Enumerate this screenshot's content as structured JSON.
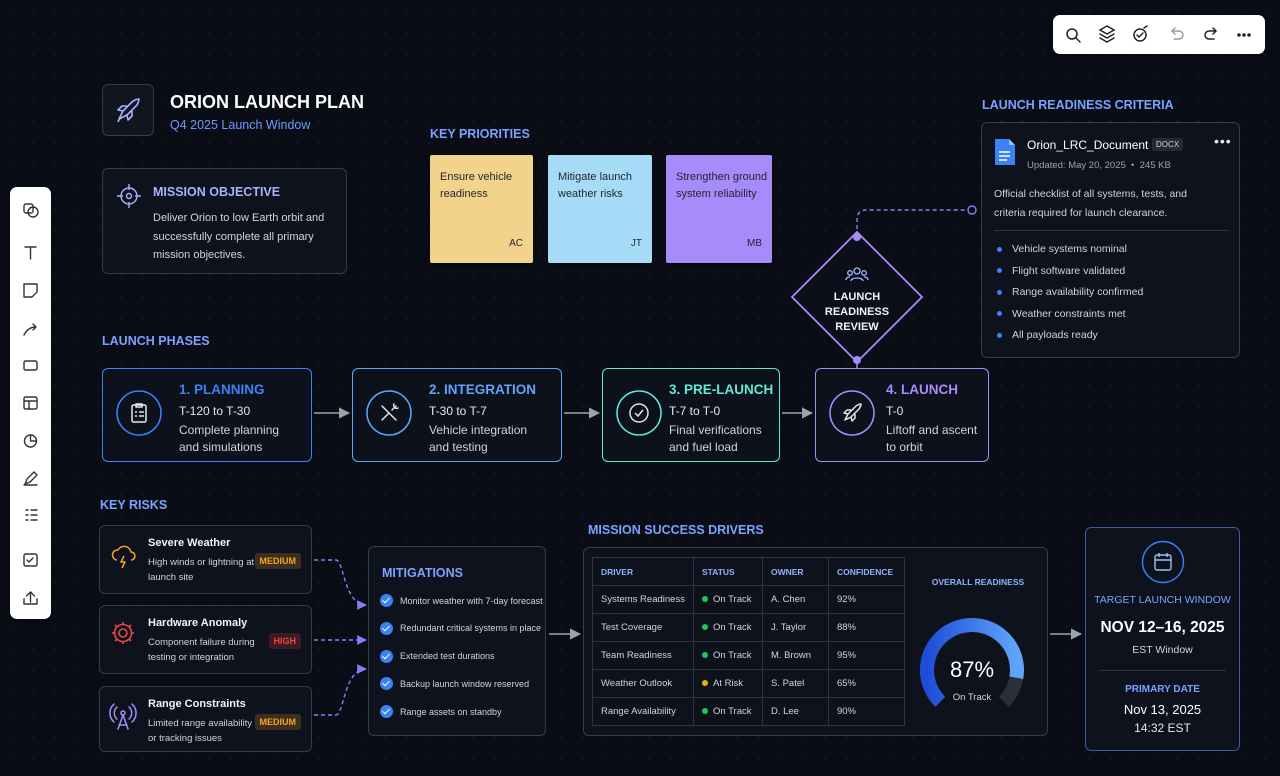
{
  "header": {
    "title": "ORION LAUNCH PLAN",
    "subtitle": "Q4 2025 Launch Window"
  },
  "objective": {
    "title": "MISSION OBJECTIVE",
    "text": "Deliver Orion to low Earth orbit and successfully complete all primary mission objectives."
  },
  "priorities": {
    "title": "KEY PRIORITIES",
    "notes": [
      {
        "text": "Ensure vehicle readiness",
        "owner": "AC",
        "color": "#f3d28b"
      },
      {
        "text": "Mitigate launch weather risks",
        "owner": "JT",
        "color": "#a6dcf7"
      },
      {
        "text": "Strengthen ground system reliability",
        "owner": "MB",
        "color": "#a78bfa"
      }
    ]
  },
  "phases": {
    "title": "LAUNCH PHASES",
    "items": [
      {
        "title": "1. PLANNING",
        "window": "T-120 to T-30",
        "text": "Complete planning and simulations",
        "color": "#3b82f6"
      },
      {
        "title": "2. INTEGRATION",
        "window": "T-30 to T-7",
        "text": "Vehicle integration and testing",
        "color": "#60a5fa"
      },
      {
        "title": "3. PRE-LAUNCH",
        "window": "T-7 to T-0",
        "text": "Final verifications and fuel load",
        "color": "#5eead4"
      },
      {
        "title": "4. LAUNCH",
        "window": "T-0",
        "text": "Liftoff and ascent to orbit",
        "color": "#a78bfa"
      }
    ]
  },
  "review": {
    "label": "LAUNCH READINESS REVIEW"
  },
  "criteria": {
    "title": "LAUNCH READINESS CRITERIA",
    "document": "Orion_LRC_Document",
    "format": "DOCX",
    "updated": "Updated: May 20, 2025",
    "size": "245 KB",
    "description": "Official checklist of all systems, tests, and criteria required for launch clearance.",
    "items": [
      "Vehicle systems nominal",
      "Flight software validated",
      "Range availability confirmed",
      "Weather constraints met",
      "All payloads ready"
    ]
  },
  "risks": {
    "title": "KEY RISKS",
    "items": [
      {
        "title": "Severe Weather",
        "text": "High winds or lightning at launch site",
        "level": "MEDIUM",
        "color": "#f5a524"
      },
      {
        "title": "Hardware Anomaly",
        "text": "Component failure during testing or integration",
        "level": "HIGH",
        "color": "#ef4444"
      },
      {
        "title": "Range Constraints",
        "text": "Limited range availability or tracking issues",
        "level": "MEDIUM",
        "color": "#f5a524"
      }
    ]
  },
  "mitigations": {
    "title": "MITIGATIONS",
    "items": [
      "Monitor weather with 7-day forecast",
      "Redundant critical systems in place",
      "Extended test durations",
      "Backup launch window reserved",
      "Range assets on standby"
    ]
  },
  "drivers": {
    "title": "MISSION SUCCESS DRIVERS",
    "columns": [
      "DRIVER",
      "STATUS",
      "OWNER",
      "CONFIDENCE"
    ],
    "rows": [
      [
        "Systems Readiness",
        "On Track",
        "A. Chen",
        "92%"
      ],
      [
        "Test Coverage",
        "On Track",
        "J. Taylor",
        "88%"
      ],
      [
        "Team Readiness",
        "On Track",
        "M. Brown",
        "95%"
      ],
      [
        "Weather Outlook",
        "At Risk",
        "S. Patel",
        "65%"
      ],
      [
        "Range Availability",
        "On Track",
        "D. Lee",
        "90%"
      ]
    ],
    "status_colors": [
      "#22c55e",
      "#22c55e",
      "#22c55e",
      "#eab308",
      "#22c55e"
    ],
    "readiness": {
      "title": "OVERALL READINESS",
      "value": 87,
      "value_label": "87%",
      "status": "On Track"
    }
  },
  "target": {
    "title": "TARGET LAUNCH WINDOW",
    "dates": "NOV 12–16, 2025",
    "zone": "EST Window",
    "primary_title": "PRIMARY DATE",
    "primary_date": "Nov 13, 2025",
    "primary_time": "14:32 EST"
  }
}
